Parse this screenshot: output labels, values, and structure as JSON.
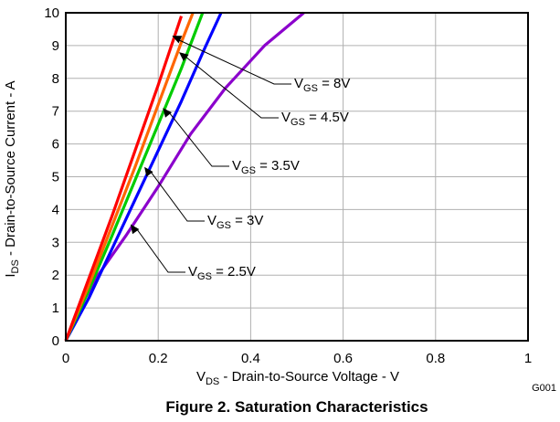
{
  "chart_data": {
    "type": "line",
    "xlabel": {
      "main": "V",
      "sub": "DS",
      "rest": " - Drain-to-Source Voltage - V"
    },
    "ylabel": {
      "main": "I",
      "sub": "DS",
      "rest": " - Drain-to-Source Current - A"
    },
    "xlim": [
      0,
      1
    ],
    "ylim": [
      0,
      10
    ],
    "x_ticks": [
      "0",
      "0.2",
      "0.4",
      "0.6",
      "0.8",
      "1"
    ],
    "y_ticks": [
      "0",
      "1",
      "2",
      "3",
      "4",
      "5",
      "6",
      "7",
      "8",
      "9",
      "10"
    ],
    "grid": true,
    "series": [
      {
        "name": "VGS = 2.5V",
        "color": "#8B00CC",
        "x": [
          0,
          0.03,
          0.07,
          0.13,
          0.2,
          0.27,
          0.345,
          0.43,
          0.515
        ],
        "y": [
          0,
          1,
          2,
          3.2,
          4.7,
          6.3,
          7.7,
          9.0,
          10
        ]
      },
      {
        "name": "VGS = 3V",
        "color": "#0000FF",
        "x": [
          0,
          0.05,
          0.1,
          0.15,
          0.2,
          0.25,
          0.3,
          0.336
        ],
        "y": [
          0,
          1.3,
          2.8,
          4.3,
          5.8,
          7.3,
          8.9,
          10
        ]
      },
      {
        "name": "VGS = 3.5V",
        "color": "#00CC00",
        "x": [
          0,
          0.05,
          0.1,
          0.15,
          0.2,
          0.25,
          0.296
        ],
        "y": [
          0,
          1.55,
          3.2,
          4.9,
          6.6,
          8.3,
          10
        ]
      },
      {
        "name": "VGS = 4.5V",
        "color": "#FF6600",
        "x": [
          0,
          0.05,
          0.1,
          0.15,
          0.2,
          0.25,
          0.275
        ],
        "y": [
          0,
          1.7,
          3.5,
          5.3,
          7.2,
          9.1,
          10
        ]
      },
      {
        "name": "VGS = 8V",
        "color": "#FF0000",
        "x": [
          0,
          0.05,
          0.1,
          0.15,
          0.2,
          0.25
        ],
        "y": [
          0,
          1.9,
          3.8,
          5.8,
          7.8,
          9.9
        ]
      }
    ],
    "annotations": [
      {
        "main": "V",
        "sub": "GS",
        "rest": " = 8V",
        "point_x": 0.23,
        "point_y": 9.3
      },
      {
        "main": "V",
        "sub": "GS",
        "rest": " = 4.5V",
        "point_x": 0.245,
        "point_y": 8.8
      },
      {
        "main": "V",
        "sub": "GS",
        "rest": " = 3.5V",
        "point_x": 0.21,
        "point_y": 7.1
      },
      {
        "main": "V",
        "sub": "GS",
        "rest": " = 3V",
        "point_x": 0.17,
        "point_y": 5.3
      },
      {
        "main": "V",
        "sub": "GS",
        "rest": " = 2.5V",
        "point_x": 0.14,
        "point_y": 3.55
      }
    ],
    "figure_code": "G001",
    "caption": "Figure 2. Saturation Characteristics"
  }
}
